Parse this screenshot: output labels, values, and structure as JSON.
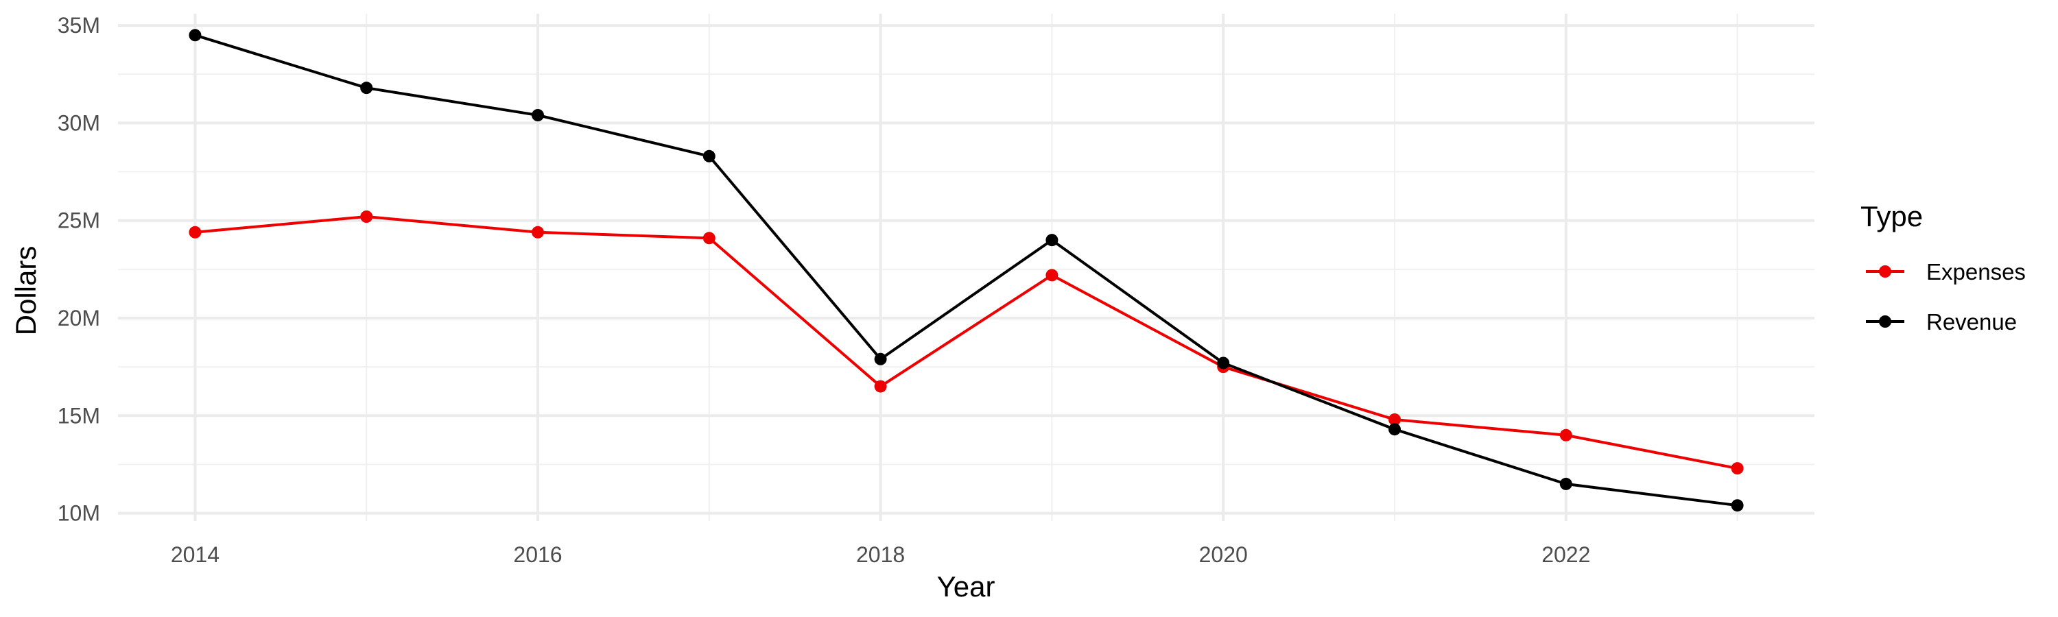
{
  "chart_data": {
    "type": "line",
    "title": "",
    "xlabel": "Year",
    "ylabel": "Dollars",
    "x": [
      2014,
      2015,
      2016,
      2017,
      2018,
      2019,
      2020,
      2021,
      2022,
      2023
    ],
    "xlim": [
      2013.55,
      2023.45
    ],
    "x_major_ticks": [
      2014,
      2016,
      2018,
      2020,
      2022
    ],
    "x_tick_labels": [
      "2014",
      "2016",
      "2018",
      "2020",
      "2022"
    ],
    "x_minor_ticks": [
      2015,
      2017,
      2019,
      2021,
      2023
    ],
    "ylim": [
      9.6,
      35.6
    ],
    "y_major_ticks": [
      10,
      15,
      20,
      25,
      30,
      35
    ],
    "y_tick_labels": [
      "10M",
      "15M",
      "20M",
      "25M",
      "30M",
      "35M"
    ],
    "y_minor_ticks": [
      12.5,
      17.5,
      22.5,
      27.5,
      32.5
    ],
    "grid": true,
    "legend": {
      "title": "Type",
      "placement": "right"
    },
    "series": [
      {
        "name": "Expenses",
        "color": "#ee0000",
        "values": [
          24.4,
          25.2,
          24.4,
          24.1,
          16.5,
          22.2,
          17.5,
          14.8,
          14.0,
          12.3
        ]
      },
      {
        "name": "Revenue",
        "color": "#000000",
        "values": [
          34.5,
          31.8,
          30.4,
          28.3,
          17.9,
          24.0,
          17.7,
          14.3,
          11.5,
          10.4
        ]
      }
    ]
  }
}
